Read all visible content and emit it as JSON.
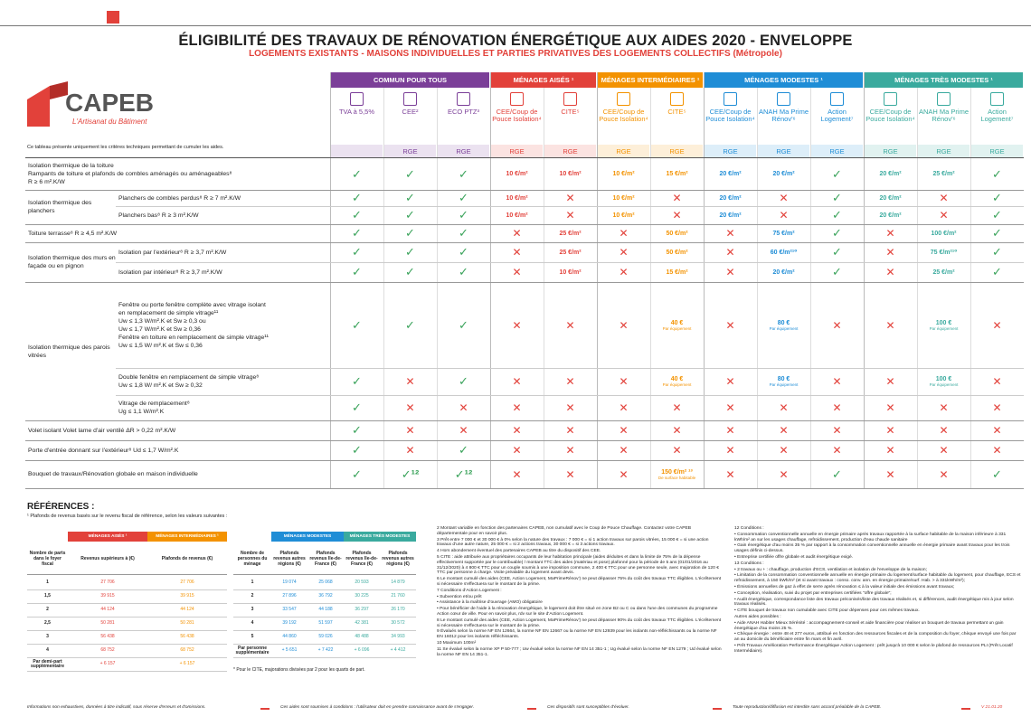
{
  "header": {
    "title": "ÉLIGIBILITÉ DES TRAVAUX DE RÉNOVATION ÉNERGÉTIQUE AUX AIDES 2020 - ENVELOPPE",
    "subtitle": "LOGEMENTS EXISTANTS - MAISONS INDIVIDUELLES ET PARTIES PRIVATIVES DES LOGEMENTS COLLECTIFS (Métropole)"
  },
  "logo": {
    "name": "CAPEB",
    "tagline": "L'Artisanat du Bâtiment"
  },
  "intro": "Ce tableau présente uniquement les critères techniques permettant de cumuler les aides.",
  "groups": [
    {
      "label": "COMMUN POUR TOUS",
      "color": "#7b3f98",
      "columns": [
        {
          "label": "TVA à 5,5%"
        },
        {
          "label": "CEE²",
          "rge": "RGE"
        },
        {
          "label": "ECO PTZ³",
          "rge": "RGE"
        }
      ]
    },
    {
      "label": "MÉNAGES AISÉS ¹",
      "color": "#e2413a",
      "columns": [
        {
          "label": "CEE/Coup de Pouce Isolation⁴",
          "rge": "RGE"
        },
        {
          "label": "CITE⁵",
          "rge": "RGE"
        }
      ]
    },
    {
      "label": "MÉNAGES INTERMÉDIAIRES ¹",
      "color": "#f39200",
      "columns": [
        {
          "label": "CEE/Coup de Pouce Isolation⁴",
          "rge": "RGE"
        },
        {
          "label": "CITE⁵",
          "rge": "RGE"
        }
      ]
    },
    {
      "label": "MÉNAGES MODESTES ¹",
      "color": "#1f8dd6",
      "columns": [
        {
          "label": "CEE/Coup de Pouce Isolation⁴",
          "rge": "RGE"
        },
        {
          "label": "ANAH Ma Prime Rénov'⁶",
          "rge": "RGE"
        },
        {
          "label": "Action Logement⁷",
          "rge": "RGE"
        }
      ]
    },
    {
      "label": "MÉNAGES TRÈS MODESTES ¹",
      "color": "#3aaa9e",
      "columns": [
        {
          "label": "CEE/Coup de Pouce Isolation⁴",
          "rge": "RGE"
        },
        {
          "label": "ANAH Ma Prime Rénov'⁶",
          "rge": "RGE"
        },
        {
          "label": "Action Logement⁷",
          "rge": "RGE"
        }
      ]
    }
  ],
  "rows": [
    {
      "label": [
        "Isolation thermique de la toiture",
        "Rampants de toiture et plafonds de combles aménagés ou aménageables⁸",
        "R ≥ 6 m².K/W"
      ],
      "cells": [
        "✓",
        "✓",
        "✓",
        "10 €/m²",
        "10 €/m²",
        "10 €/m²",
        "15 €/m²",
        "20 €/m²",
        "20 €/m²",
        "✓",
        "20 €/m²",
        "25 €/m²",
        "✓"
      ]
    },
    {
      "group": "Isolation thermique des planchers",
      "items": [
        {
          "label": [
            "Planchers de combles perdus⁸ R ≥ 7 m².K/W"
          ],
          "cells": [
            "✓",
            "✓",
            "✓",
            "10 €/m²",
            "✕",
            "10 €/m²",
            "✕",
            "20 €/m²",
            "✕",
            "✓",
            "20 €/m²",
            "✕",
            "✓"
          ]
        },
        {
          "label": [
            "Planchers bas⁸ R ≥ 3 m².K/W"
          ],
          "cells": [
            "✓",
            "✓",
            "✓",
            "10 €/m²",
            "✕",
            "10 €/m²",
            "✕",
            "20 €/m²",
            "✕",
            "✓",
            "20 €/m²",
            "✕",
            "✓"
          ]
        }
      ]
    },
    {
      "label": [
        "Toiture terrasse⁸ R ≥ 4,5 m².K/W"
      ],
      "cells": [
        "✓",
        "✓",
        "✓",
        "✕",
        "25 €/m²",
        "✕",
        "50 €/m²",
        "✕",
        "75 €/m²",
        "✓",
        "✕",
        "100 €/m²",
        "✓"
      ]
    },
    {
      "group": "Isolation thermique des murs en façade ou en pignon",
      "items": [
        {
          "label": [
            "Isolation par l'extérieur⁸ R ≥ 3,7 m².K/W"
          ],
          "cells": [
            "✓",
            "✓",
            "✓",
            "✕",
            "25 €/m²",
            "✕",
            "50 €/m²",
            "✕",
            "60 €/m²¹⁰",
            "✓",
            "✕",
            "75 €/m²¹⁰",
            "✓"
          ]
        },
        {
          "label": [
            "Isolation par intérieur⁸ R ≥ 3,7 m².K/W"
          ],
          "cells": [
            "✓",
            "✓",
            "✓",
            "✕",
            "10 €/m²",
            "✕",
            "15 €/m²",
            "✕",
            "20 €/m²",
            "✓",
            "✕",
            "25 €/m²",
            "✓"
          ]
        }
      ]
    },
    {
      "group": "Isolation thermique des parois vitrées",
      "items": [
        {
          "label": [
            "Fenêtre ou porte fenêtre complète avec vitrage isolant",
            "en remplacement de simple vitrage¹¹",
            "Uw ≤ 1,3 W/m².K et Sw ≥ 0,3 ou",
            "Uw ≤ 1,7 W/m².K et Sw ≥ 0,36",
            "Fenêtre en toiture en remplacement de simple vitrage¹¹",
            "Uw ≤ 1,5 W/ m².K et Sw ≤ 0,36"
          ],
          "cells": [
            "✓",
            "✓",
            "✓",
            "✕",
            "✕",
            "✕",
            {
              "text": "40 €",
              "note": "Par équipement"
            },
            "✕",
            {
              "text": "80 €",
              "note": "Par équipement"
            },
            "✕",
            "✕",
            {
              "text": "100 €",
              "note": "Par équipement"
            },
            "✕"
          ]
        },
        {
          "label": [
            "Double fenêtre en remplacement de simple vitrage⁸",
            "Uw ≤ 1,8 W/ m².K et Sw ≥ 0,32"
          ],
          "cells": [
            "✓",
            "✕",
            "✓",
            "✕",
            "✕",
            "✕",
            {
              "text": "40 €",
              "note": "Par équipement"
            },
            "✕",
            {
              "text": "80 €",
              "note": "Par équipement"
            },
            "✕",
            "✕",
            {
              "text": "100 €",
              "note": "Par équipement"
            },
            "✕"
          ]
        },
        {
          "label": [
            "Vitrage de remplacement⁸",
            "Ug ≤ 1,1 W/m².K"
          ],
          "cells": [
            "✓",
            "✕",
            "✕",
            "✕",
            "✕",
            "✕",
            "✕",
            "✕",
            "✕",
            "✕",
            "✕",
            "✕",
            "✕"
          ]
        }
      ]
    },
    {
      "label": [
        "Volet isolant Volet lame d'air ventilé ΔR > 0,22 m².K/W"
      ],
      "cells": [
        "✓",
        "✕",
        "✕",
        "✕",
        "✕",
        "✕",
        "✕",
        "✕",
        "✕",
        "✕",
        "✕",
        "✕",
        "✕"
      ]
    },
    {
      "label": [
        "Porte d'entrée donnant sur l'extérieur⁸ Ud ≤ 1,7 W/m².K"
      ],
      "cells": [
        "✓",
        "✕",
        "✓",
        "✕",
        "✕",
        "✕",
        "✕",
        "✕",
        "✕",
        "✕",
        "✕",
        "✕",
        "✕"
      ]
    },
    {
      "label": [
        "Bouquet de travaux/Rénovation globale en maison individuelle"
      ],
      "cells": [
        "✓",
        "✓¹²",
        "✓¹²",
        "✕",
        "✕",
        "✕",
        {
          "text": "150 €/m² ¹³",
          "note": "De surface habitable"
        },
        "✕",
        "✕",
        "✓",
        "✕",
        "✕",
        "✓"
      ]
    }
  ],
  "references": {
    "title": "RÉFÉRENCES :",
    "intro": "¹ Plafonds de revenus basés sur le revenu fiscal de référence, selon les valeurs suivantes :",
    "table_1": {
      "groups": [
        "MÉNAGES AISÉS ¹",
        "MÉNAGES INTERMÉDIAIRES ¹"
      ],
      "header": [
        "Nombre de parts dans le foyer fiscal",
        "Revenus supérieurs à (€)",
        "Plafonds de revenus (€)"
      ],
      "rows": [
        [
          "1",
          "27 706",
          "27 706"
        ],
        [
          "1,5",
          "39 915",
          "39 915"
        ],
        [
          "2",
          "44 124",
          "44 124"
        ],
        [
          "2,5",
          "50 281",
          "50 281"
        ],
        [
          "3",
          "56 438",
          "56 438"
        ],
        [
          "4",
          "68 752",
          "68 752"
        ],
        [
          "Par demi-part supplémentaire",
          "+ 6 157",
          "+ 6 157"
        ]
      ]
    },
    "table_2": {
      "groups": [
        "MÉNAGES MODESTES",
        "MÉNAGES TRÈS MODESTES"
      ],
      "header": [
        "Nombre de personnes du ménage",
        "Plafonds revenus autres régions (€)",
        "Plafonds revenus Ile-de-France (€)",
        "Plafonds revenus Ile-de-France (€)",
        "Plafonds revenus autres régions (€)"
      ],
      "rows": [
        [
          "1",
          "19 074",
          "25 068",
          "20 593",
          "14 879"
        ],
        [
          "2",
          "27 896",
          "36 792",
          "30 225",
          "21 760"
        ],
        [
          "3",
          "33 547",
          "44 188",
          "36 297",
          "26 170"
        ],
        [
          "4",
          "39 192",
          "51 597",
          "42 381",
          "30 572"
        ],
        [
          "5",
          "44 860",
          "59 026",
          "48 488",
          "34 993"
        ],
        [
          "Par personne supplémentaire",
          "+ 5 651",
          "+ 7 422",
          "+ 6 096",
          "+ 4 412"
        ]
      ]
    },
    "note": "* Pour le CITE, majorations divisées par 2 pour les quarts de part."
  },
  "notes_1": [
    "2  Montant variable en fonction des partenaires CAPEB, non cumulatif avec le Coup de Pouce Chauffage. Contactez votre CAPEB départementale pour en savoir plus.",
    "3  Prêt entre 7 000 € et 30 000 € à 0% selon la nature des travaux : 7 000 € = si 1 action travaux sur parois vitrées, 15 000 € = si une action travaux d'une autre nature, 25 000 € = si 2 actions travaux, 30 000 € = si 3 actions travaux.",
    "4  Hors abondement éventuel des partenaires CAPEB au titre du dispositif des CEE.",
    "5  CITE : aide attribuée aux propriétaires occupants de leur habitation principale (aides déduites et dans la limite de 75% de la dépense effectivement supportée par le contribuable) / montant TTC des aides (matériau et pose) plafonné pour la période de 5 ans (01/01/2016 au 31/12/2020) à 4 800 € TTC pour un couple soumis à une imposition commune, 2 400 € TTC pour une personne seule, avec majoration de 120 € TTC par personne à charge. Visite préalable du logement avant devis.",
    "6  Le montant cumulé des aides (CEE, Action Logement, MaPrimeRénov') ne peut dépasser 75% du coût des travaux TTC éligibles. L'écrêtement si nécessaire s'effectuera sur le montant de la prime.",
    "7  Conditions d'Action Logement :",
    "• Subvention et/ou prêt",
    "• Assistance à la maîtrise d'ouvrage (AMO) obligatoire",
    "• Pour bénéficier de l'aide à la rénovation énergétique, le logement doit être situé en zone B2 ou C ou dans l'une des communes du programme Action cœur de ville. Pour en savoir plus, rdv sur le site d'Action Logement.",
    "8  Le montant cumulé des aides (CEE, Action Logement, MaPrimeRénov') ne peut dépasser 90% du coût des travaux TTC éligibles. L'écrêtement si nécessaire s'effectuera sur le montant de la prime.",
    "9  Évalués selon la norme NF EN 12664, la norme NF EN 12667 ou la norme NF EN 12939 pour les isolants non-réfléchissants ou la norme NF EN 16012 pour les isolants réfléchissants.",
    "10 Maximum 100m²",
    "11 Se évalué selon la norme XP P 50-777 ; Uw évalué selon la norme NF EN 14 351-1 ; Ug évalué selon la norme NF EN 1279 ; Ud évalué selon la norme NF EN 14 351-1."
  ],
  "notes_2": [
    "12 Conditions :",
    "• Consommation conventionnelle annuelle en énergie primaire après travaux rapportée à la surface habitable de la maison inférieure à 331 kWh/m² an sur les usages chauffage, refroidissement, production d'eau chaude sanitaire",
    "• Gain énergétique d'au moins 35 % par rapport à la consommation conventionnelle annuelle en énergie primaire avant travaux pour les trois usages définis ci-dessus.",
    "• Entreprise certifiée offre globale et audit énergétique exigé.",
    "13 Conditions :",
    "• 2 travaux ou + : chauffage, production d'ECS, ventilation et isolation de l'enveloppe de la maison;",
    "• Limitation de la consommation conventionnelle annuelle en énergie primaire du logement/surface habitable du logement, pour chauffage, ECS et refroidissement, à 150 kWh/m² (et si avant travaux : conso. conv. ann. en énergie primaire/surf. Hab. > à 331kWh/m²);",
    "• Émissions annuelles de gaz à effet de serre après rénovation ≤ à la valeur initiale des émissions avant travaux;",
    "• Conception, réalisation, suivi du projet par entreprises certifiées \"offre globale\";",
    "• Audit énergétique, correspondance liste des travaux préconisés/liste des travaux réalisés et, si différences, audit énergétique mis à jour selon travaux réalisés.",
    "• CITE bouquet de travaux non cumulable avec CITE pour dépenses pour ces mêmes travaux.",
    "Autres aides possibles :",
    "• Aide ANAH Habiter Mieux Sérénité : accompagnement-conseil et aide financière pour réaliser un bouquet de travaux permettant un gain énergétique d'au moins 25 %.",
    "• Chèque énergie : entre 48 et 277 euros, attribué en fonction des ressources fiscales et de la composition du foyer, chèque envoyé une fois par an au domicile du bénéficiaire entre fin mars et fin avril.",
    "• Prêt Travaux Amélioration Performance Énergétique Action Logement : prêt jusqu'à 10 000 € selon le plafond de ressources PLI (Prêt Locatif Intermédiaire)."
  ],
  "footer": [
    "Informations non exhaustives, données à titre indicatif, sous réserve d'erreurs et d'omissions.",
    "Ces aides sont soumises à conditions : l'utilisateur doit en prendre connaissance avant de s'engager.",
    "Ces dispositifs sont susceptibles d'évoluer.",
    "Toute reproduction/diffusion est interdite sans accord préalable de la CAPEB.",
    "V 21.01.20"
  ]
}
